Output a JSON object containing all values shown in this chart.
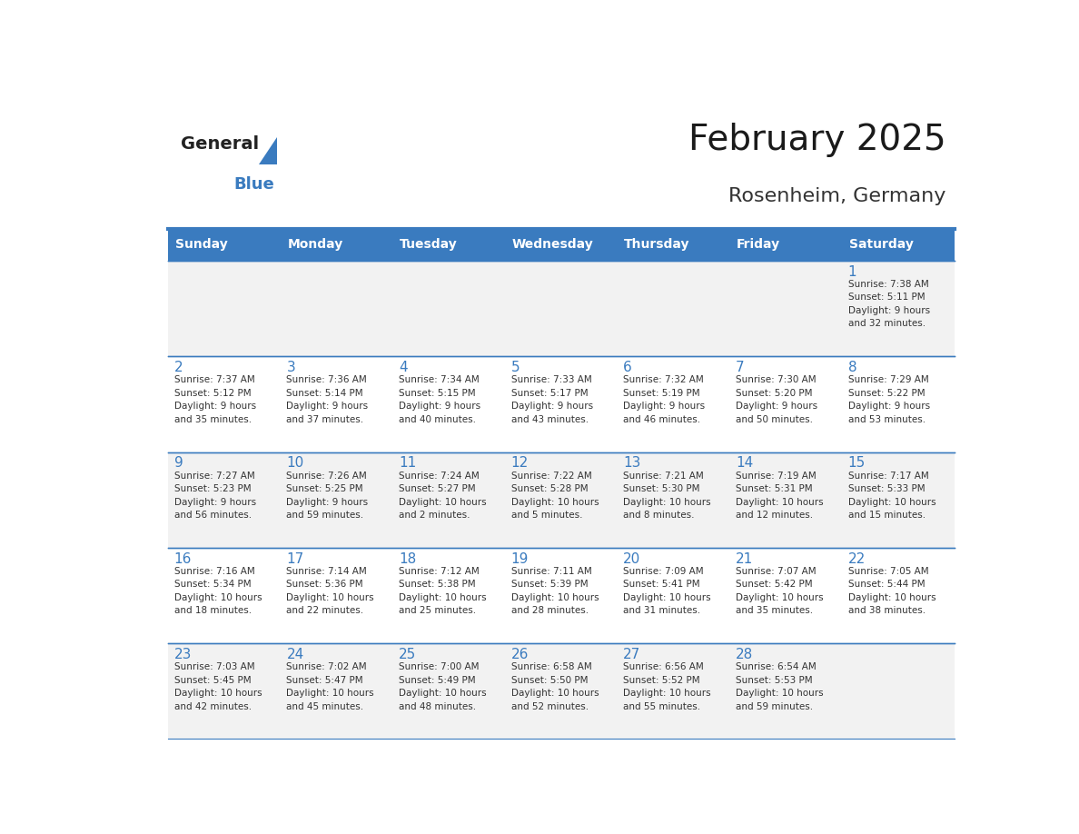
{
  "title": "February 2025",
  "subtitle": "Rosenheim, Germany",
  "days_of_week": [
    "Sunday",
    "Monday",
    "Tuesday",
    "Wednesday",
    "Thursday",
    "Friday",
    "Saturday"
  ],
  "header_bg": "#3A7BBF",
  "header_text": "#FFFFFF",
  "cell_bg_odd": "#F2F2F2",
  "cell_bg_even": "#FFFFFF",
  "day_number_color": "#3A7BBF",
  "text_color": "#333333",
  "line_color": "#3A7BBF",
  "logo_general_color": "#222222",
  "logo_blue_color": "#3A7BBF",
  "weeks": [
    [
      {
        "day": null,
        "info": null
      },
      {
        "day": null,
        "info": null
      },
      {
        "day": null,
        "info": null
      },
      {
        "day": null,
        "info": null
      },
      {
        "day": null,
        "info": null
      },
      {
        "day": null,
        "info": null
      },
      {
        "day": 1,
        "info": "Sunrise: 7:38 AM\nSunset: 5:11 PM\nDaylight: 9 hours\nand 32 minutes."
      }
    ],
    [
      {
        "day": 2,
        "info": "Sunrise: 7:37 AM\nSunset: 5:12 PM\nDaylight: 9 hours\nand 35 minutes."
      },
      {
        "day": 3,
        "info": "Sunrise: 7:36 AM\nSunset: 5:14 PM\nDaylight: 9 hours\nand 37 minutes."
      },
      {
        "day": 4,
        "info": "Sunrise: 7:34 AM\nSunset: 5:15 PM\nDaylight: 9 hours\nand 40 minutes."
      },
      {
        "day": 5,
        "info": "Sunrise: 7:33 AM\nSunset: 5:17 PM\nDaylight: 9 hours\nand 43 minutes."
      },
      {
        "day": 6,
        "info": "Sunrise: 7:32 AM\nSunset: 5:19 PM\nDaylight: 9 hours\nand 46 minutes."
      },
      {
        "day": 7,
        "info": "Sunrise: 7:30 AM\nSunset: 5:20 PM\nDaylight: 9 hours\nand 50 minutes."
      },
      {
        "day": 8,
        "info": "Sunrise: 7:29 AM\nSunset: 5:22 PM\nDaylight: 9 hours\nand 53 minutes."
      }
    ],
    [
      {
        "day": 9,
        "info": "Sunrise: 7:27 AM\nSunset: 5:23 PM\nDaylight: 9 hours\nand 56 minutes."
      },
      {
        "day": 10,
        "info": "Sunrise: 7:26 AM\nSunset: 5:25 PM\nDaylight: 9 hours\nand 59 minutes."
      },
      {
        "day": 11,
        "info": "Sunrise: 7:24 AM\nSunset: 5:27 PM\nDaylight: 10 hours\nand 2 minutes."
      },
      {
        "day": 12,
        "info": "Sunrise: 7:22 AM\nSunset: 5:28 PM\nDaylight: 10 hours\nand 5 minutes."
      },
      {
        "day": 13,
        "info": "Sunrise: 7:21 AM\nSunset: 5:30 PM\nDaylight: 10 hours\nand 8 minutes."
      },
      {
        "day": 14,
        "info": "Sunrise: 7:19 AM\nSunset: 5:31 PM\nDaylight: 10 hours\nand 12 minutes."
      },
      {
        "day": 15,
        "info": "Sunrise: 7:17 AM\nSunset: 5:33 PM\nDaylight: 10 hours\nand 15 minutes."
      }
    ],
    [
      {
        "day": 16,
        "info": "Sunrise: 7:16 AM\nSunset: 5:34 PM\nDaylight: 10 hours\nand 18 minutes."
      },
      {
        "day": 17,
        "info": "Sunrise: 7:14 AM\nSunset: 5:36 PM\nDaylight: 10 hours\nand 22 minutes."
      },
      {
        "day": 18,
        "info": "Sunrise: 7:12 AM\nSunset: 5:38 PM\nDaylight: 10 hours\nand 25 minutes."
      },
      {
        "day": 19,
        "info": "Sunrise: 7:11 AM\nSunset: 5:39 PM\nDaylight: 10 hours\nand 28 minutes."
      },
      {
        "day": 20,
        "info": "Sunrise: 7:09 AM\nSunset: 5:41 PM\nDaylight: 10 hours\nand 31 minutes."
      },
      {
        "day": 21,
        "info": "Sunrise: 7:07 AM\nSunset: 5:42 PM\nDaylight: 10 hours\nand 35 minutes."
      },
      {
        "day": 22,
        "info": "Sunrise: 7:05 AM\nSunset: 5:44 PM\nDaylight: 10 hours\nand 38 minutes."
      }
    ],
    [
      {
        "day": 23,
        "info": "Sunrise: 7:03 AM\nSunset: 5:45 PM\nDaylight: 10 hours\nand 42 minutes."
      },
      {
        "day": 24,
        "info": "Sunrise: 7:02 AM\nSunset: 5:47 PM\nDaylight: 10 hours\nand 45 minutes."
      },
      {
        "day": 25,
        "info": "Sunrise: 7:00 AM\nSunset: 5:49 PM\nDaylight: 10 hours\nand 48 minutes."
      },
      {
        "day": 26,
        "info": "Sunrise: 6:58 AM\nSunset: 5:50 PM\nDaylight: 10 hours\nand 52 minutes."
      },
      {
        "day": 27,
        "info": "Sunrise: 6:56 AM\nSunset: 5:52 PM\nDaylight: 10 hours\nand 55 minutes."
      },
      {
        "day": 28,
        "info": "Sunrise: 6:54 AM\nSunset: 5:53 PM\nDaylight: 10 hours\nand 59 minutes."
      },
      {
        "day": null,
        "info": null
      }
    ]
  ]
}
